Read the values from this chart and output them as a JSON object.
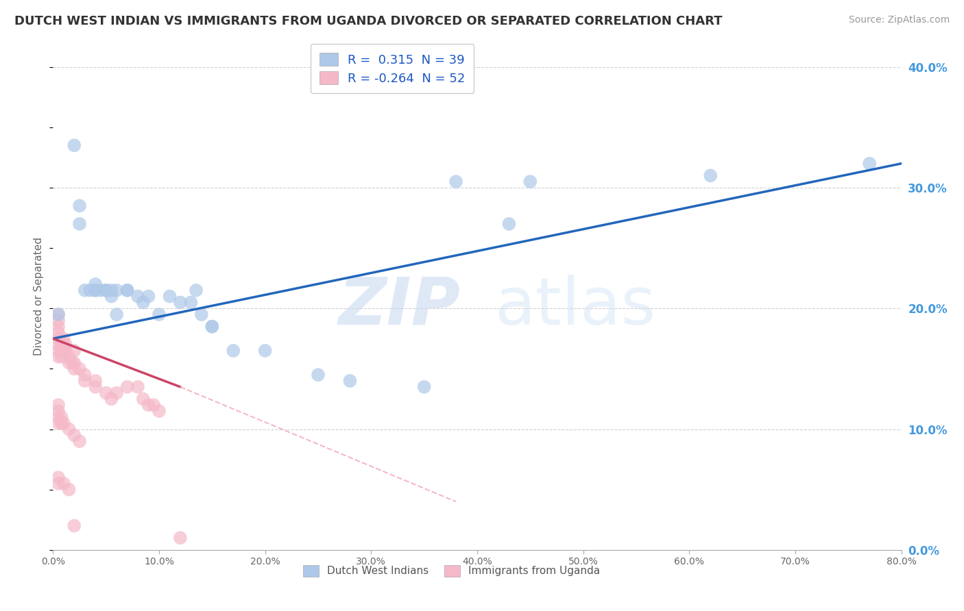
{
  "title": "DUTCH WEST INDIAN VS IMMIGRANTS FROM UGANDA DIVORCED OR SEPARATED CORRELATION CHART",
  "source": "Source: ZipAtlas.com",
  "ylabel": "Divorced or Separated",
  "xlim": [
    0.0,
    0.8
  ],
  "ylim": [
    0.0,
    0.42
  ],
  "blue_R": "0.315",
  "blue_N": "39",
  "pink_R": "-0.264",
  "pink_N": "52",
  "legend_label_blue": "Dutch West Indians",
  "legend_label_pink": "Immigrants from Uganda",
  "watermark_zip": "ZIP",
  "watermark_atlas": "atlas",
  "blue_color": "#adc8e8",
  "pink_color": "#f5b8c8",
  "blue_line_color": "#2266bb",
  "pink_line_color": "#cc4466",
  "blue_scatter": [
    [
      0.005,
      0.195
    ],
    [
      0.02,
      0.335
    ],
    [
      0.025,
      0.285
    ],
    [
      0.025,
      0.27
    ],
    [
      0.03,
      0.215
    ],
    [
      0.035,
      0.215
    ],
    [
      0.04,
      0.215
    ],
    [
      0.04,
      0.22
    ],
    [
      0.04,
      0.215
    ],
    [
      0.045,
      0.215
    ],
    [
      0.05,
      0.215
    ],
    [
      0.05,
      0.215
    ],
    [
      0.055,
      0.215
    ],
    [
      0.055,
      0.21
    ],
    [
      0.06,
      0.195
    ],
    [
      0.06,
      0.215
    ],
    [
      0.07,
      0.215
    ],
    [
      0.07,
      0.215
    ],
    [
      0.08,
      0.21
    ],
    [
      0.085,
      0.205
    ],
    [
      0.09,
      0.21
    ],
    [
      0.1,
      0.195
    ],
    [
      0.11,
      0.21
    ],
    [
      0.12,
      0.205
    ],
    [
      0.13,
      0.205
    ],
    [
      0.135,
      0.215
    ],
    [
      0.14,
      0.195
    ],
    [
      0.15,
      0.185
    ],
    [
      0.15,
      0.185
    ],
    [
      0.17,
      0.165
    ],
    [
      0.2,
      0.165
    ],
    [
      0.25,
      0.145
    ],
    [
      0.28,
      0.14
    ],
    [
      0.35,
      0.135
    ],
    [
      0.38,
      0.305
    ],
    [
      0.43,
      0.27
    ],
    [
      0.45,
      0.305
    ],
    [
      0.62,
      0.31
    ],
    [
      0.77,
      0.32
    ]
  ],
  "pink_scatter": [
    [
      0.005,
      0.195
    ],
    [
      0.005,
      0.19
    ],
    [
      0.005,
      0.185
    ],
    [
      0.005,
      0.18
    ],
    [
      0.005,
      0.175
    ],
    [
      0.005,
      0.17
    ],
    [
      0.005,
      0.165
    ],
    [
      0.005,
      0.16
    ],
    [
      0.008,
      0.17
    ],
    [
      0.008,
      0.165
    ],
    [
      0.008,
      0.16
    ],
    [
      0.01,
      0.175
    ],
    [
      0.01,
      0.17
    ],
    [
      0.01,
      0.165
    ],
    [
      0.012,
      0.17
    ],
    [
      0.012,
      0.165
    ],
    [
      0.015,
      0.16
    ],
    [
      0.015,
      0.155
    ],
    [
      0.018,
      0.155
    ],
    [
      0.02,
      0.165
    ],
    [
      0.02,
      0.155
    ],
    [
      0.02,
      0.15
    ],
    [
      0.025,
      0.15
    ],
    [
      0.03,
      0.145
    ],
    [
      0.03,
      0.14
    ],
    [
      0.04,
      0.14
    ],
    [
      0.04,
      0.135
    ],
    [
      0.05,
      0.13
    ],
    [
      0.055,
      0.125
    ],
    [
      0.06,
      0.13
    ],
    [
      0.07,
      0.135
    ],
    [
      0.08,
      0.135
    ],
    [
      0.085,
      0.125
    ],
    [
      0.09,
      0.12
    ],
    [
      0.095,
      0.12
    ],
    [
      0.1,
      0.115
    ],
    [
      0.005,
      0.12
    ],
    [
      0.005,
      0.115
    ],
    [
      0.005,
      0.11
    ],
    [
      0.005,
      0.105
    ],
    [
      0.008,
      0.11
    ],
    [
      0.008,
      0.105
    ],
    [
      0.01,
      0.105
    ],
    [
      0.015,
      0.1
    ],
    [
      0.02,
      0.095
    ],
    [
      0.025,
      0.09
    ],
    [
      0.005,
      0.06
    ],
    [
      0.005,
      0.055
    ],
    [
      0.01,
      0.055
    ],
    [
      0.015,
      0.05
    ],
    [
      0.02,
      0.02
    ],
    [
      0.12,
      0.01
    ]
  ],
  "blue_trendline": [
    [
      0.0,
      0.175
    ],
    [
      0.8,
      0.32
    ]
  ],
  "pink_trendline_solid": [
    [
      0.0,
      0.175
    ],
    [
      0.12,
      0.135
    ]
  ],
  "pink_trendline_dashed": [
    [
      0.12,
      0.135
    ],
    [
      0.38,
      0.04
    ]
  ],
  "grid_color": "#cccccc",
  "bg_color": "#ffffff",
  "title_color": "#333333",
  "right_axis_color": "#4499dd",
  "x_ticks": [
    0.0,
    0.1,
    0.2,
    0.3,
    0.4,
    0.5,
    0.6,
    0.7,
    0.8
  ],
  "y_ticks": [
    0.0,
    0.1,
    0.2,
    0.3,
    0.4
  ]
}
